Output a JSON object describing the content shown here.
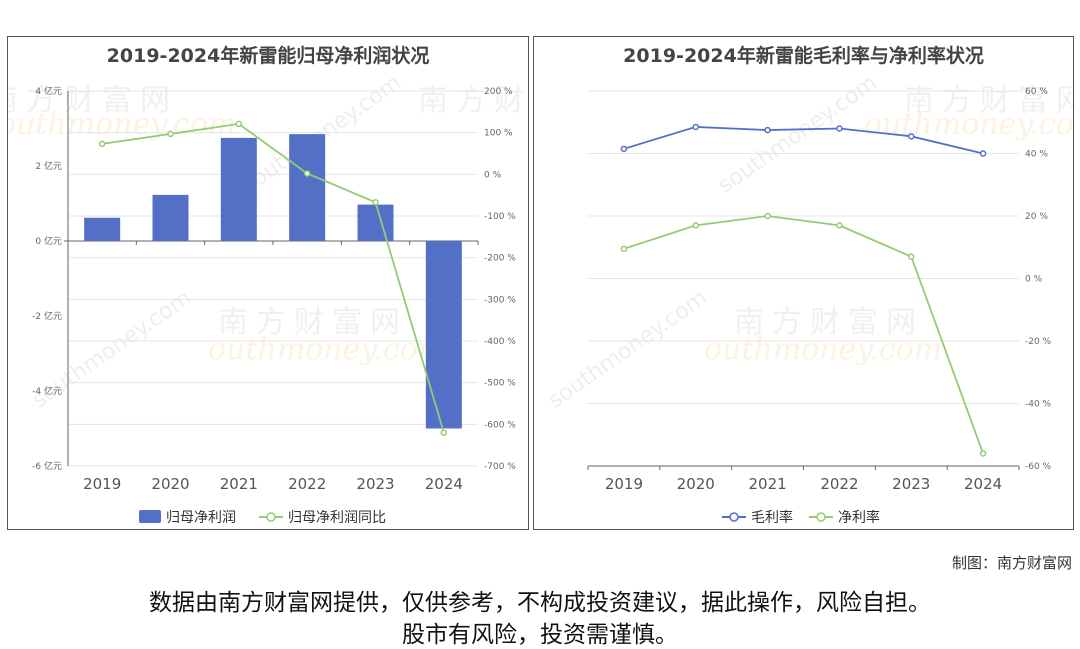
{
  "watermark": {
    "cn": "南方财富网",
    "en": "outhmoney.com",
    "small_en": "southmoney.com"
  },
  "credit": "制图：南方财富网",
  "disclaimer": {
    "line1": "数据由南方财富网提供，仅供参考，不构成投资建议，据此操作，风险自担。",
    "line2": "股市有风险，投资需谨慎。"
  },
  "chart_data": [
    {
      "type": "bar",
      "title": "2019-2024年新雷能归母净利润状况",
      "categories": [
        "2019",
        "2020",
        "2021",
        "2022",
        "2023",
        "2024"
      ],
      "series": [
        {
          "name": "归母净利润",
          "kind": "bar",
          "axis": "left",
          "color": "#5470c6",
          "values": [
            0.62,
            1.23,
            2.75,
            2.85,
            0.97,
            -5.0
          ]
        },
        {
          "name": "归母净利润同比",
          "kind": "line",
          "axis": "right",
          "color": "#91cc75",
          "values": [
            73,
            97,
            121,
            2,
            -67,
            -620
          ]
        }
      ],
      "left_axis": {
        "unit": "亿元",
        "min": -6,
        "max": 4,
        "step": 2,
        "tick_labels": [
          "-6 亿元",
          "-4 亿元",
          "-2 亿元",
          "0 亿元",
          "2 亿元",
          "4 亿元"
        ]
      },
      "right_axis": {
        "min": -700,
        "max": 200,
        "step": 100,
        "tick_labels": [
          "-700 %",
          "-600 %",
          "-500 %",
          "-400 %",
          "-300 %",
          "-200 %",
          "-100 %",
          "0 %",
          "100 %",
          "200 %"
        ]
      },
      "grid": true,
      "legend": "bottom-center"
    },
    {
      "type": "line",
      "title": "2019-2024年新雷能毛利率与净利率状况",
      "categories": [
        "2019",
        "2020",
        "2021",
        "2022",
        "2023",
        "2024"
      ],
      "series": [
        {
          "name": "毛利率",
          "color": "#5470c6",
          "values": [
            41.5,
            48.5,
            47.5,
            48.0,
            45.5,
            40.0
          ]
        },
        {
          "name": "净利率",
          "color": "#91cc75",
          "values": [
            9.5,
            17.0,
            20.0,
            17.0,
            7.0,
            -56.0
          ]
        }
      ],
      "right_axis": {
        "min": -60,
        "max": 60,
        "step": 20,
        "tick_labels": [
          "-60 %",
          "-40 %",
          "-20 %",
          "0 %",
          "20 %",
          "40 %",
          "60 %"
        ]
      },
      "grid": true,
      "legend": "bottom-center"
    }
  ]
}
